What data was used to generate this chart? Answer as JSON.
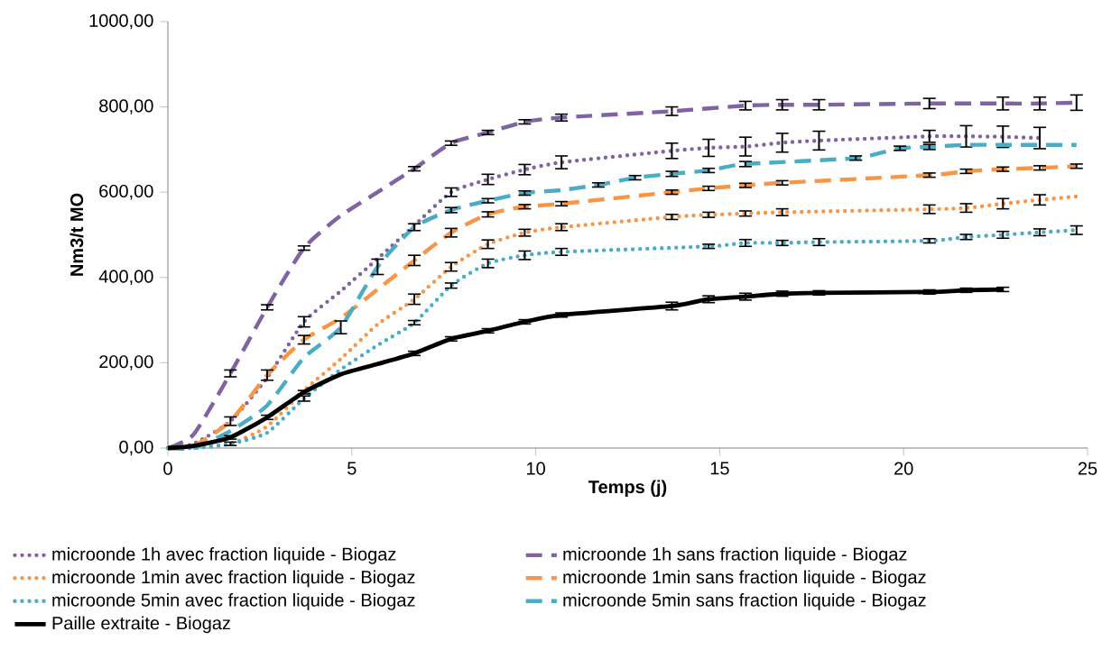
{
  "chart_data": {
    "type": "line",
    "xlabel": "Temps (j)",
    "ylabel": "Nm3/t MO",
    "xlim": [
      0,
      25
    ],
    "xticks": [
      0,
      5,
      10,
      15,
      20,
      25
    ],
    "ylim": [
      0,
      1000
    ],
    "yticks": [
      {
        "value": 0,
        "label": "0,00"
      },
      {
        "value": 200,
        "label": "200,00"
      },
      {
        "value": 400,
        "label": "400,00"
      },
      {
        "value": 600,
        "label": "600,00"
      },
      {
        "value": 800,
        "label": "800,00"
      },
      {
        "value": 1000,
        "label": "1000,00"
      }
    ],
    "legend": "bottom",
    "marker": "none",
    "series": [
      {
        "name": "microonde 1h  avec fraction liquide - Biogaz",
        "color": "#8064a2",
        "line_style": "dotted",
        "x": [
          0,
          0.7,
          1.7,
          2.7,
          3.7,
          4.7,
          5.7,
          6.7,
          7.7,
          8.7,
          9.7,
          10.7,
          13.7,
          14.7,
          15.7,
          16.7,
          17.7,
          20.7,
          21.7,
          22.7,
          23.7
        ],
        "values": [
          0,
          10,
          63,
          165,
          296,
          368,
          444,
          522,
          600,
          630,
          653,
          670,
          697,
          704,
          707,
          716,
          721,
          731,
          731,
          730,
          727
        ],
        "errors": [
          null,
          null,
          null,
          null,
          12,
          null,
          null,
          null,
          10,
          12,
          12,
          15,
          18,
          20,
          22,
          22,
          22,
          14,
          25,
          25,
          25
        ]
      },
      {
        "name": "microonde 1h sans fraction liquide - Biogaz",
        "color": "#8064a2",
        "line_style": "dashed",
        "x": [
          0,
          0.7,
          1.7,
          2.7,
          3.7,
          4.7,
          5.7,
          6.7,
          7.7,
          8.7,
          9.7,
          10.7,
          13.7,
          15.7,
          16.7,
          17.7,
          20.7,
          22.7,
          23.7,
          24.7
        ],
        "values": [
          0,
          32,
          175,
          330,
          469,
          545,
          600,
          655,
          715,
          740,
          765,
          775,
          790,
          803,
          805,
          805,
          808,
          808,
          808,
          810
        ],
        "errors": [
          null,
          null,
          8,
          6,
          5,
          null,
          null,
          5,
          5,
          5,
          5,
          8,
          10,
          10,
          12,
          12,
          12,
          15,
          15,
          18
        ]
      },
      {
        "name": "microonde 1min avec fraction liquide - Biogaz",
        "color": "#f79646",
        "line_style": "dotted",
        "x": [
          0,
          0.7,
          1.7,
          2.7,
          3.7,
          4.7,
          5.7,
          6.7,
          7.7,
          8.7,
          9.7,
          10.7,
          13.7,
          14.7,
          15.7,
          16.7,
          20.7,
          21.7,
          22.7,
          23.7,
          24.7
        ],
        "values": [
          0,
          0,
          10,
          51,
          135,
          209,
          290,
          349,
          425,
          478,
          505,
          518,
          542,
          547,
          550,
          553,
          560,
          563,
          573,
          582,
          590
        ],
        "errors": [
          null,
          null,
          null,
          null,
          null,
          null,
          null,
          12,
          10,
          10,
          8,
          8,
          6,
          6,
          6,
          8,
          10,
          10,
          12,
          12,
          null
        ]
      },
      {
        "name": "microonde 1min  sans fraction liquide - Biogaz",
        "color": "#f79646",
        "line_style": "dashed",
        "x": [
          0,
          0.7,
          1.7,
          2.7,
          3.7,
          4.7,
          5.7,
          6.7,
          7.7,
          8.7,
          9.7,
          10.7,
          13.7,
          14.7,
          15.7,
          16.7,
          20.7,
          21.7,
          22.7,
          23.7,
          24.7
        ],
        "values": [
          0,
          5,
          63,
          171,
          254,
          305,
          372,
          440,
          505,
          548,
          566,
          573,
          600,
          609,
          616,
          622,
          640,
          649,
          654,
          657,
          661
        ],
        "errors": [
          null,
          null,
          10,
          12,
          10,
          null,
          null,
          12,
          10,
          6,
          5,
          5,
          5,
          5,
          5,
          5,
          5,
          5,
          5,
          5,
          5
        ]
      },
      {
        "name": "microonde 5min avec fraction liquide - Biogaz",
        "color": "#4bacc6",
        "line_style": "dotted",
        "x": [
          0,
          0.7,
          1.7,
          2.7,
          3.7,
          4.7,
          5.7,
          6.7,
          7.7,
          8.7,
          9.7,
          10.7,
          14.7,
          15.7,
          16.7,
          17.7,
          20.7,
          21.7,
          22.7,
          23.7,
          24.7
        ],
        "values": [
          0,
          0,
          10,
          36,
          116,
          184,
          241,
          294,
          381,
          433,
          452,
          460,
          473,
          481,
          481,
          483,
          486,
          495,
          500,
          506,
          511
        ],
        "errors": [
          null,
          null,
          4,
          null,
          6,
          null,
          null,
          5,
          6,
          10,
          10,
          8,
          5,
          8,
          6,
          8,
          5,
          6,
          8,
          8,
          10
        ]
      },
      {
        "name": "microonde 5min sans fraction liquide - Biogaz",
        "color": "#4bacc6",
        "line_style": "dashed",
        "x": [
          0,
          0.7,
          1.7,
          2.7,
          3.7,
          4.7,
          5.7,
          6.7,
          7.7,
          8.7,
          9.7,
          10.7,
          11.7,
          12.7,
          13.7,
          14.7,
          15.7,
          18.7,
          19.9,
          20.7,
          21.7,
          22.7,
          23.7,
          24.7
        ],
        "values": [
          0,
          0,
          40,
          100,
          212,
          283,
          425,
          518,
          558,
          580,
          598,
          605,
          617,
          634,
          643,
          651,
          666,
          680,
          703,
          706,
          711,
          711,
          711,
          711
        ],
        "errors": [
          null,
          null,
          null,
          null,
          null,
          15,
          18,
          8,
          6,
          5,
          5,
          null,
          5,
          5,
          6,
          5,
          6,
          5,
          5,
          6,
          null,
          null,
          null,
          null
        ]
      },
      {
        "name": "Paille extraite - Biogaz",
        "color": "#000000",
        "line_style": "solid",
        "x": [
          0,
          0.7,
          1.7,
          2.7,
          3.7,
          4.7,
          5.7,
          6.7,
          7.7,
          8.7,
          9.7,
          10.7,
          13.7,
          14.7,
          15.7,
          16.7,
          17.7,
          20.7,
          21.7,
          22.7
        ],
        "values": [
          0,
          5,
          25,
          72,
          131,
          173,
          197,
          222,
          256,
          275,
          296,
          312,
          333,
          349,
          355,
          362,
          364,
          366,
          370,
          372
        ],
        "errors": [
          null,
          null,
          4,
          5,
          4,
          null,
          null,
          5,
          5,
          5,
          5,
          5,
          9,
          8,
          8,
          6,
          5,
          5,
          5,
          5
        ]
      }
    ]
  }
}
